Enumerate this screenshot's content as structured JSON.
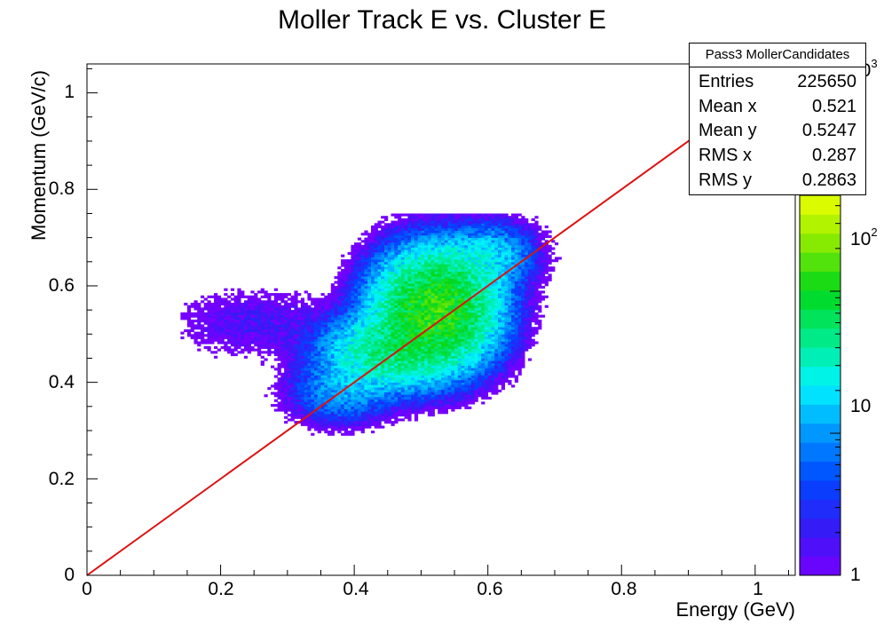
{
  "chart_data": {
    "type": "heatmap",
    "title": "Moller Track E vs. Cluster E",
    "xlabel": "Energy (GeV)",
    "ylabel": "Momentum (GeV/c)",
    "xlim": [
      0,
      1.06
    ],
    "ylim": [
      0,
      1.06
    ],
    "x_ticks": [
      "0",
      "0.2",
      "0.4",
      "0.6",
      "0.8",
      "1"
    ],
    "y_ticks": [
      "0",
      "0.2",
      "0.4",
      "0.6",
      "0.8",
      "1"
    ],
    "colorbar": {
      "scale": "log",
      "range": [
        1,
        1000
      ],
      "tick_labels": [
        "1",
        "10",
        "10",
        "10"
      ],
      "tick_exponents": [
        "",
        "",
        "2",
        "3"
      ]
    },
    "overlay_line": {
      "color": "#dd1111",
      "points": [
        [
          0,
          0
        ],
        [
          1.06,
          1.06
        ]
      ]
    },
    "density_regions": [
      {
        "x": 0.52,
        "y": 0.55,
        "sx": 0.045,
        "sy": 0.06,
        "peak": 250
      },
      {
        "x": 0.45,
        "y": 0.46,
        "sx": 0.05,
        "sy": 0.04,
        "peak": 80
      },
      {
        "x": 0.6,
        "y": 0.66,
        "sx": 0.035,
        "sy": 0.035,
        "peak": 25
      },
      {
        "x": 0.38,
        "y": 0.38,
        "sx": 0.04,
        "sy": 0.035,
        "peak": 15
      },
      {
        "x": 0.25,
        "y": 0.52,
        "sx": 0.07,
        "sy": 0.04,
        "peak": 2
      }
    ],
    "stats": {
      "name": "Pass3 MollerCandidates",
      "rows": [
        {
          "label": "Entries",
          "value": "225650"
        },
        {
          "label": "Mean x",
          "value": "0.521"
        },
        {
          "label": "Mean y",
          "value": "0.5247"
        },
        {
          "label": "RMS x",
          "value": "0.287"
        },
        {
          "label": "RMS y",
          "value": "0.2863"
        }
      ]
    }
  }
}
